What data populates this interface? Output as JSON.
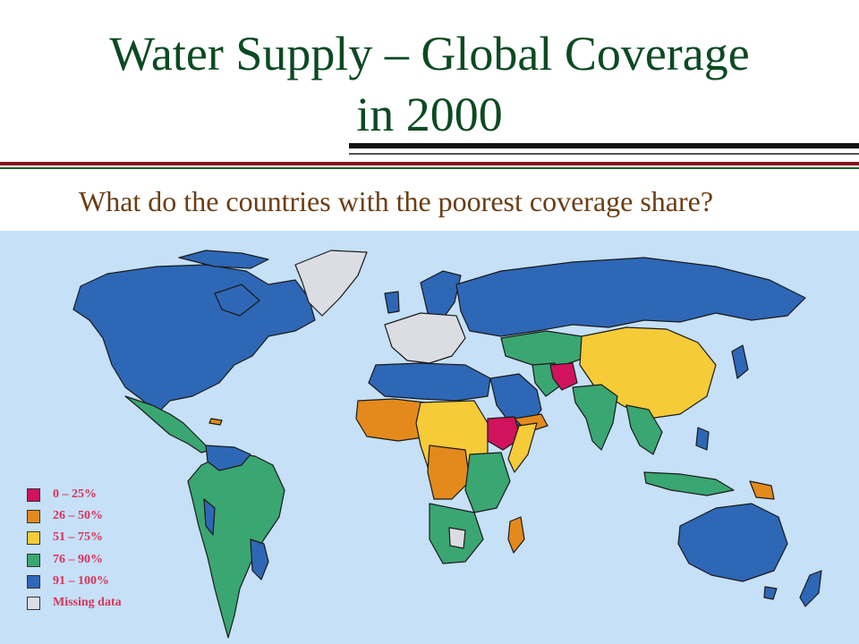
{
  "slide": {
    "title_line1": "Water Supply – Global Coverage",
    "title_line2": "in 2000",
    "question": "What do the countries with the poorest coverage share?"
  },
  "colors": {
    "title": "#0b4a22",
    "question": "#6b3d14",
    "ocean": "#c5e0f7",
    "rule_dark": "#111111",
    "rule_red": "#8b0d1f",
    "rule_green": "#1f5c2a"
  },
  "legend": {
    "items": [
      {
        "label": "0 – 25%",
        "color": "#d0135c"
      },
      {
        "label": "26 – 50%",
        "color": "#e48a1c"
      },
      {
        "label": "51 – 75%",
        "color": "#f5cb38"
      },
      {
        "label": "76 – 90%",
        "color": "#3aa672"
      },
      {
        "label": "91 – 100%",
        "color": "#2e67b6"
      },
      {
        "label": "Missing data",
        "color": "#dcdce3"
      }
    ]
  }
}
